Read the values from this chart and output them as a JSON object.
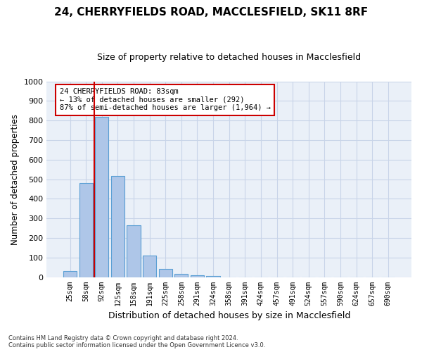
{
  "title": "24, CHERRYFIELDS ROAD, MACCLESFIELD, SK11 8RF",
  "subtitle": "Size of property relative to detached houses in Macclesfield",
  "xlabel": "Distribution of detached houses by size in Macclesfield",
  "ylabel": "Number of detached properties",
  "bar_values": [
    30,
    480,
    820,
    515,
    265,
    110,
    40,
    18,
    10,
    5,
    0,
    0,
    0,
    0,
    0,
    0,
    0,
    0,
    0,
    0,
    0
  ],
  "categories": [
    "25sqm",
    "58sqm",
    "92sqm",
    "125sqm",
    "158sqm",
    "191sqm",
    "225sqm",
    "258sqm",
    "291sqm",
    "324sqm",
    "358sqm",
    "391sqm",
    "424sqm",
    "457sqm",
    "491sqm",
    "524sqm",
    "557sqm",
    "590sqm",
    "624sqm",
    "657sqm",
    "690sqm"
  ],
  "bar_color": "#aec6e8",
  "bar_edge_color": "#5a9fd4",
  "background_color": "#ffffff",
  "axes_bg_color": "#eaf0f8",
  "grid_color": "#c8d4e8",
  "ylim": [
    0,
    1000
  ],
  "yticks": [
    0,
    100,
    200,
    300,
    400,
    500,
    600,
    700,
    800,
    900,
    1000
  ],
  "redline_x": 1.5,
  "annotation_text": "24 CHERRYFIELDS ROAD: 83sqm\n← 13% of detached houses are smaller (292)\n87% of semi-detached houses are larger (1,964) →",
  "annotation_box_color": "#ffffff",
  "annotation_box_edge": "#cc0000",
  "redline_color": "#cc0000",
  "footer_line1": "Contains HM Land Registry data © Crown copyright and database right 2024.",
  "footer_line2": "Contains public sector information licensed under the Open Government Licence v3.0."
}
